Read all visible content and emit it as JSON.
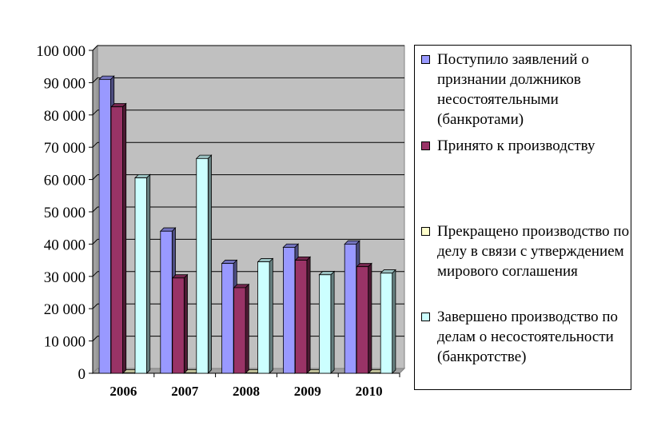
{
  "chart_data": {
    "type": "bar",
    "title": "",
    "xlabel": "",
    "ylabel": "",
    "categories": [
      "2006",
      "2007",
      "2008",
      "2009",
      "2010"
    ],
    "ylim": [
      0,
      100000
    ],
    "yticks": [
      0,
      10000,
      20000,
      30000,
      40000,
      50000,
      60000,
      70000,
      80000,
      90000,
      100000
    ],
    "ytick_labels": [
      "0",
      "10 000",
      "20 000",
      "30 000",
      "40 000",
      "50 000",
      "60 000",
      "70 000",
      "80 000",
      "90 000",
      "100 000"
    ],
    "grid": true,
    "legend_position": "right",
    "series": [
      {
        "name": "Поступило заявлений о признании должников несостоятельными (банкротами)",
        "color": "#9999ff",
        "values": [
          91000,
          44000,
          34000,
          39000,
          40000
        ]
      },
      {
        "name": "Принято к производству",
        "color": "#993366",
        "values": [
          82500,
          29500,
          26500,
          35000,
          33000
        ]
      },
      {
        "name": "Прекращено производство по делу в связи с утверждением мирового соглашения",
        "color": "#ffffcc",
        "values": [
          100,
          100,
          100,
          100,
          100
        ]
      },
      {
        "name": "Завершено производство по делам о несостоятельности (банкротстве)",
        "color": "#ccffff",
        "values": [
          60500,
          66500,
          34500,
          30500,
          31000
        ]
      }
    ]
  }
}
